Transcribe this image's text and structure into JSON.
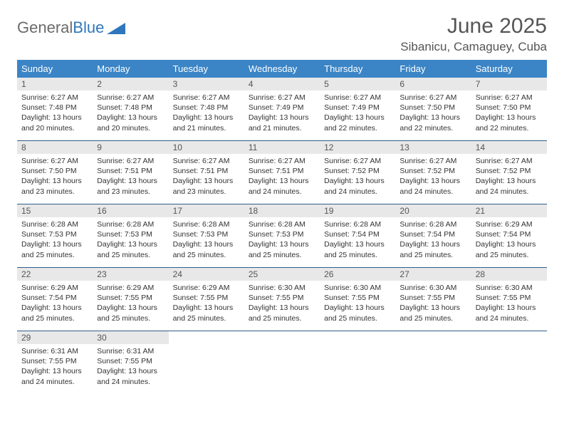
{
  "brand": {
    "part1": "General",
    "part2": "Blue"
  },
  "title": "June 2025",
  "location": "Sibanicu, Camaguey, Cuba",
  "colors": {
    "header_bg": "#3b85c6",
    "header_fg": "#ffffff",
    "daynum_bg": "#e8e8e8",
    "border": "#2f5d8a",
    "brand_gray": "#6b6b6b",
    "brand_blue": "#2f77bc"
  },
  "weekdays": [
    "Sunday",
    "Monday",
    "Tuesday",
    "Wednesday",
    "Thursday",
    "Friday",
    "Saturday"
  ],
  "weeks": [
    [
      {
        "n": "1",
        "sr": "6:27 AM",
        "ss": "7:48 PM",
        "dl": "13 hours and 20 minutes."
      },
      {
        "n": "2",
        "sr": "6:27 AM",
        "ss": "7:48 PM",
        "dl": "13 hours and 20 minutes."
      },
      {
        "n": "3",
        "sr": "6:27 AM",
        "ss": "7:48 PM",
        "dl": "13 hours and 21 minutes."
      },
      {
        "n": "4",
        "sr": "6:27 AM",
        "ss": "7:49 PM",
        "dl": "13 hours and 21 minutes."
      },
      {
        "n": "5",
        "sr": "6:27 AM",
        "ss": "7:49 PM",
        "dl": "13 hours and 22 minutes."
      },
      {
        "n": "6",
        "sr": "6:27 AM",
        "ss": "7:50 PM",
        "dl": "13 hours and 22 minutes."
      },
      {
        "n": "7",
        "sr": "6:27 AM",
        "ss": "7:50 PM",
        "dl": "13 hours and 22 minutes."
      }
    ],
    [
      {
        "n": "8",
        "sr": "6:27 AM",
        "ss": "7:50 PM",
        "dl": "13 hours and 23 minutes."
      },
      {
        "n": "9",
        "sr": "6:27 AM",
        "ss": "7:51 PM",
        "dl": "13 hours and 23 minutes."
      },
      {
        "n": "10",
        "sr": "6:27 AM",
        "ss": "7:51 PM",
        "dl": "13 hours and 23 minutes."
      },
      {
        "n": "11",
        "sr": "6:27 AM",
        "ss": "7:51 PM",
        "dl": "13 hours and 24 minutes."
      },
      {
        "n": "12",
        "sr": "6:27 AM",
        "ss": "7:52 PM",
        "dl": "13 hours and 24 minutes."
      },
      {
        "n": "13",
        "sr": "6:27 AM",
        "ss": "7:52 PM",
        "dl": "13 hours and 24 minutes."
      },
      {
        "n": "14",
        "sr": "6:27 AM",
        "ss": "7:52 PM",
        "dl": "13 hours and 24 minutes."
      }
    ],
    [
      {
        "n": "15",
        "sr": "6:28 AM",
        "ss": "7:53 PM",
        "dl": "13 hours and 25 minutes."
      },
      {
        "n": "16",
        "sr": "6:28 AM",
        "ss": "7:53 PM",
        "dl": "13 hours and 25 minutes."
      },
      {
        "n": "17",
        "sr": "6:28 AM",
        "ss": "7:53 PM",
        "dl": "13 hours and 25 minutes."
      },
      {
        "n": "18",
        "sr": "6:28 AM",
        "ss": "7:53 PM",
        "dl": "13 hours and 25 minutes."
      },
      {
        "n": "19",
        "sr": "6:28 AM",
        "ss": "7:54 PM",
        "dl": "13 hours and 25 minutes."
      },
      {
        "n": "20",
        "sr": "6:28 AM",
        "ss": "7:54 PM",
        "dl": "13 hours and 25 minutes."
      },
      {
        "n": "21",
        "sr": "6:29 AM",
        "ss": "7:54 PM",
        "dl": "13 hours and 25 minutes."
      }
    ],
    [
      {
        "n": "22",
        "sr": "6:29 AM",
        "ss": "7:54 PM",
        "dl": "13 hours and 25 minutes."
      },
      {
        "n": "23",
        "sr": "6:29 AM",
        "ss": "7:55 PM",
        "dl": "13 hours and 25 minutes."
      },
      {
        "n": "24",
        "sr": "6:29 AM",
        "ss": "7:55 PM",
        "dl": "13 hours and 25 minutes."
      },
      {
        "n": "25",
        "sr": "6:30 AM",
        "ss": "7:55 PM",
        "dl": "13 hours and 25 minutes."
      },
      {
        "n": "26",
        "sr": "6:30 AM",
        "ss": "7:55 PM",
        "dl": "13 hours and 25 minutes."
      },
      {
        "n": "27",
        "sr": "6:30 AM",
        "ss": "7:55 PM",
        "dl": "13 hours and 25 minutes."
      },
      {
        "n": "28",
        "sr": "6:30 AM",
        "ss": "7:55 PM",
        "dl": "13 hours and 24 minutes."
      }
    ],
    [
      {
        "n": "29",
        "sr": "6:31 AM",
        "ss": "7:55 PM",
        "dl": "13 hours and 24 minutes."
      },
      {
        "n": "30",
        "sr": "6:31 AM",
        "ss": "7:55 PM",
        "dl": "13 hours and 24 minutes."
      },
      null,
      null,
      null,
      null,
      null
    ]
  ],
  "labels": {
    "sunrise": "Sunrise:",
    "sunset": "Sunset:",
    "daylight": "Daylight:"
  }
}
